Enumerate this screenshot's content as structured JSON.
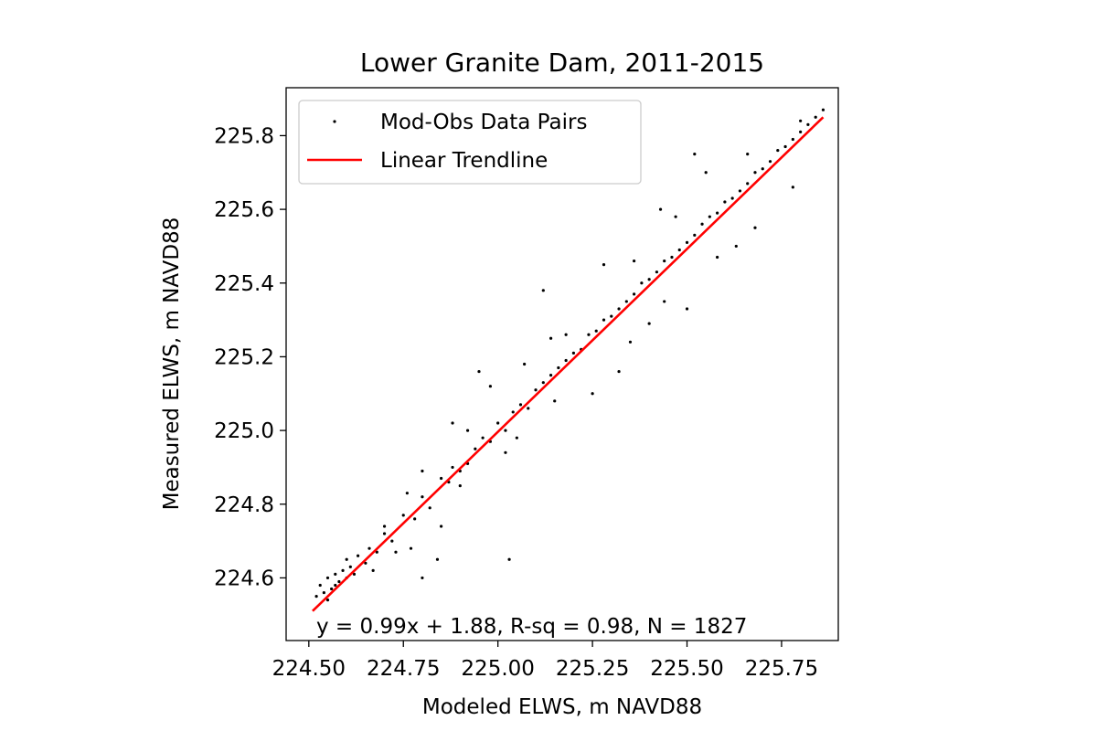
{
  "chart_data": {
    "type": "scatter",
    "title": "Lower Granite Dam, 2011-2015",
    "xlabel": "Modeled ELWS, m NAVD88",
    "ylabel": "Measured ELWS, m NAVD88",
    "xlim": [
      224.44,
      225.9
    ],
    "ylim": [
      224.43,
      225.93
    ],
    "x_ticks": [
      224.5,
      224.75,
      225.0,
      225.25,
      225.5,
      225.75
    ],
    "x_tick_labels": [
      "224.50",
      "224.75",
      "225.00",
      "225.25",
      "225.50",
      "225.75"
    ],
    "y_ticks": [
      224.6,
      224.8,
      225.0,
      225.2,
      225.4,
      225.6,
      225.8
    ],
    "y_tick_labels": [
      "224.6",
      "224.8",
      "225.0",
      "225.2",
      "225.4",
      "225.6",
      "225.8"
    ],
    "grid": false,
    "legend_position": "top-left",
    "series": [
      {
        "name": "Mod-Obs Data Pairs",
        "kind": "scatter",
        "color": "#000000",
        "points": [
          [
            224.52,
            224.55
          ],
          [
            224.53,
            224.58
          ],
          [
            224.54,
            224.56
          ],
          [
            224.55,
            224.6
          ],
          [
            224.56,
            224.57
          ],
          [
            224.57,
            224.61
          ],
          [
            224.58,
            224.59
          ],
          [
            224.59,
            224.62
          ],
          [
            224.6,
            224.6
          ],
          [
            224.61,
            224.63
          ],
          [
            224.55,
            224.54
          ],
          [
            224.57,
            224.58
          ],
          [
            224.6,
            224.65
          ],
          [
            224.62,
            224.61
          ],
          [
            224.63,
            224.66
          ],
          [
            224.65,
            224.64
          ],
          [
            224.66,
            224.68
          ],
          [
            224.68,
            224.67
          ],
          [
            224.7,
            224.72
          ],
          [
            224.72,
            224.7
          ],
          [
            224.75,
            224.77
          ],
          [
            224.78,
            224.76
          ],
          [
            224.8,
            224.82
          ],
          [
            224.82,
            224.79
          ],
          [
            224.85,
            224.87
          ],
          [
            224.87,
            224.86
          ],
          [
            224.88,
            224.9
          ],
          [
            224.9,
            224.89
          ],
          [
            224.92,
            224.91
          ],
          [
            224.94,
            224.95
          ],
          [
            224.96,
            224.98
          ],
          [
            224.98,
            224.97
          ],
          [
            225.0,
            225.02
          ],
          [
            225.02,
            225.0
          ],
          [
            225.04,
            225.05
          ],
          [
            225.06,
            225.07
          ],
          [
            225.08,
            225.06
          ],
          [
            225.1,
            225.11
          ],
          [
            225.12,
            225.13
          ],
          [
            225.14,
            225.15
          ],
          [
            225.16,
            225.17
          ],
          [
            225.18,
            225.19
          ],
          [
            225.2,
            225.21
          ],
          [
            225.22,
            225.22
          ],
          [
            225.24,
            225.26
          ],
          [
            225.26,
            225.27
          ],
          [
            225.28,
            225.3
          ],
          [
            225.3,
            225.31
          ],
          [
            225.32,
            225.33
          ],
          [
            225.34,
            225.35
          ],
          [
            225.36,
            225.37
          ],
          [
            225.38,
            225.4
          ],
          [
            225.4,
            225.41
          ],
          [
            225.42,
            225.43
          ],
          [
            225.44,
            225.46
          ],
          [
            225.46,
            225.47
          ],
          [
            225.48,
            225.49
          ],
          [
            225.5,
            225.51
          ],
          [
            225.52,
            225.53
          ],
          [
            225.54,
            225.56
          ],
          [
            225.56,
            225.58
          ],
          [
            225.58,
            225.59
          ],
          [
            225.6,
            225.62
          ],
          [
            225.62,
            225.63
          ],
          [
            225.64,
            225.65
          ],
          [
            225.66,
            225.67
          ],
          [
            225.68,
            225.7
          ],
          [
            225.7,
            225.71
          ],
          [
            225.72,
            225.73
          ],
          [
            225.74,
            225.76
          ],
          [
            225.76,
            225.77
          ],
          [
            225.78,
            225.79
          ],
          [
            225.8,
            225.81
          ],
          [
            225.82,
            225.83
          ],
          [
            225.84,
            225.85
          ],
          [
            225.86,
            225.87
          ],
          [
            224.67,
            224.62
          ],
          [
            224.73,
            224.67
          ],
          [
            224.77,
            224.68
          ],
          [
            224.8,
            224.6
          ],
          [
            224.84,
            224.65
          ],
          [
            225.03,
            224.65
          ],
          [
            224.85,
            224.74
          ],
          [
            224.92,
            225.0
          ],
          [
            224.95,
            225.16
          ],
          [
            224.8,
            224.89
          ],
          [
            225.05,
            224.98
          ],
          [
            225.14,
            225.25
          ],
          [
            225.12,
            225.38
          ],
          [
            225.25,
            225.1
          ],
          [
            225.28,
            225.45
          ],
          [
            225.35,
            225.24
          ],
          [
            225.4,
            225.29
          ],
          [
            225.32,
            225.16
          ],
          [
            225.5,
            225.33
          ],
          [
            225.52,
            225.75
          ],
          [
            225.43,
            225.6
          ],
          [
            225.58,
            225.47
          ],
          [
            225.47,
            225.58
          ],
          [
            225.63,
            225.5
          ],
          [
            225.68,
            225.55
          ],
          [
            225.78,
            225.66
          ],
          [
            225.8,
            225.84
          ],
          [
            225.66,
            225.75
          ],
          [
            225.55,
            225.7
          ],
          [
            225.44,
            225.35
          ],
          [
            225.36,
            225.46
          ],
          [
            225.15,
            225.08
          ],
          [
            225.18,
            225.26
          ],
          [
            225.07,
            225.18
          ],
          [
            225.02,
            224.94
          ],
          [
            224.98,
            225.12
          ],
          [
            224.9,
            224.85
          ],
          [
            224.88,
            225.02
          ],
          [
            224.76,
            224.83
          ],
          [
            224.7,
            224.74
          ]
        ]
      },
      {
        "name": "Linear Trendline",
        "kind": "line",
        "color": "#ff0000",
        "x": [
          224.51,
          225.86
        ],
        "y": [
          224.51,
          225.85
        ]
      }
    ],
    "annotation": "y = 0.99x + 1.88, R-sq = 0.98, N = 1827"
  }
}
